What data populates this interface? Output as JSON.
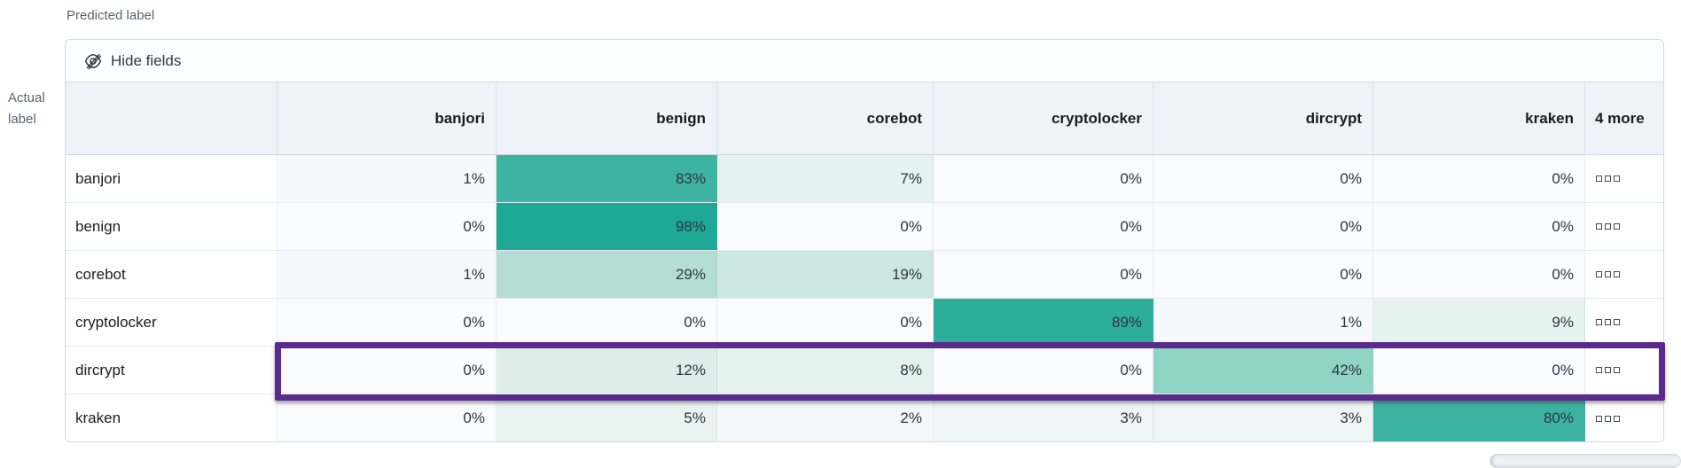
{
  "axis_labels": {
    "predicted": "Predicted label",
    "actual_line1": "Actual",
    "actual_line2": "label"
  },
  "toolbar": {
    "hide_fields_label": "Hide fields"
  },
  "chart_data": {
    "type": "heatmap",
    "subtype": "confusion-matrix",
    "x_axis_title": "Predicted label",
    "y_axis_title": "Actual label",
    "columns": [
      "banjori",
      "benign",
      "corebot",
      "cryptolocker",
      "dircrypt",
      "kraken"
    ],
    "overflow_column_label": "4 more",
    "value_suffix": "%",
    "rows": [
      {
        "label": "banjori",
        "values": [
          1,
          83,
          7,
          0,
          0,
          0
        ],
        "highlighted": false
      },
      {
        "label": "benign",
        "values": [
          0,
          98,
          0,
          0,
          0,
          0
        ],
        "highlighted": false
      },
      {
        "label": "corebot",
        "values": [
          1,
          29,
          19,
          0,
          0,
          0
        ],
        "highlighted": false
      },
      {
        "label": "cryptolocker",
        "values": [
          0,
          0,
          0,
          89,
          1,
          9
        ],
        "highlighted": false
      },
      {
        "label": "dircrypt",
        "values": [
          0,
          12,
          8,
          0,
          42,
          0
        ],
        "highlighted": true
      },
      {
        "label": "kraken",
        "values": [
          0,
          5,
          2,
          3,
          3,
          80
        ],
        "highlighted": false
      }
    ],
    "legend": "off",
    "grid": "on",
    "colors": {
      "heat_min": "#f9fafd",
      "heat_max": "#1ea896",
      "stops": {
        "0": "#fafbfe",
        "1": "#f6f9fc",
        "2": "#f3f8fa",
        "3": "#eef6f5",
        "5": "#e9f4f1",
        "7": "#e6f2ef",
        "8": "#e4f1ed",
        "9": "#e6f2ee",
        "12": "#ddeee9",
        "19": "#cde8e0",
        "29": "#b4ded4",
        "42": "#8fd4c4",
        "80": "#3cb3a0",
        "83": "#3fb3a2",
        "89": "#2dae9b",
        "98": "#1ea896"
      },
      "highlight_border": "#5b2b8c"
    }
  },
  "icons": {
    "hide_fields": "eye-closed-icon",
    "more_values": "boxes-horizontal-icon"
  }
}
